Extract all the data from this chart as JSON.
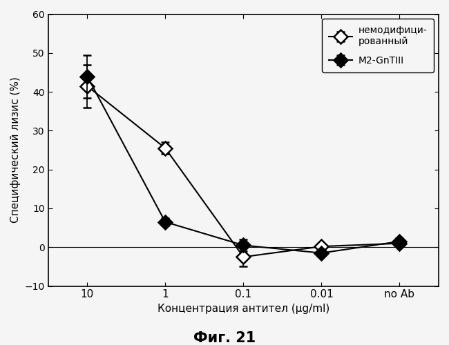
{
  "x_labels": [
    "10",
    "1",
    "0.1",
    "0.01",
    "no Ab"
  ],
  "x_positions": [
    0,
    1,
    2,
    3,
    4
  ],
  "series1_name": "немодифици-\nрованный",
  "series1_y": [
    41.5,
    25.5,
    -2.5,
    0.2,
    1.0
  ],
  "series1_yerr": [
    5.5,
    1.5,
    2.5,
    0.8,
    0.8
  ],
  "series2_name": "M2-GnTIII",
  "series2_y": [
    44.0,
    6.5,
    0.5,
    -1.5,
    1.5
  ],
  "series2_yerr": [
    5.5,
    1.0,
    1.5,
    0.8,
    0.8
  ],
  "ylabel": "Специфический лизис (%)",
  "xlabel": "Концентрация антител (μg/ml)",
  "caption": "Фиг. 21",
  "ylim": [
    -10,
    60
  ],
  "yticks": [
    -10,
    0,
    10,
    20,
    30,
    40,
    50,
    60
  ],
  "background_color": "#f5f5f5",
  "figsize": [
    6.5,
    5.0
  ],
  "dpi": 100
}
